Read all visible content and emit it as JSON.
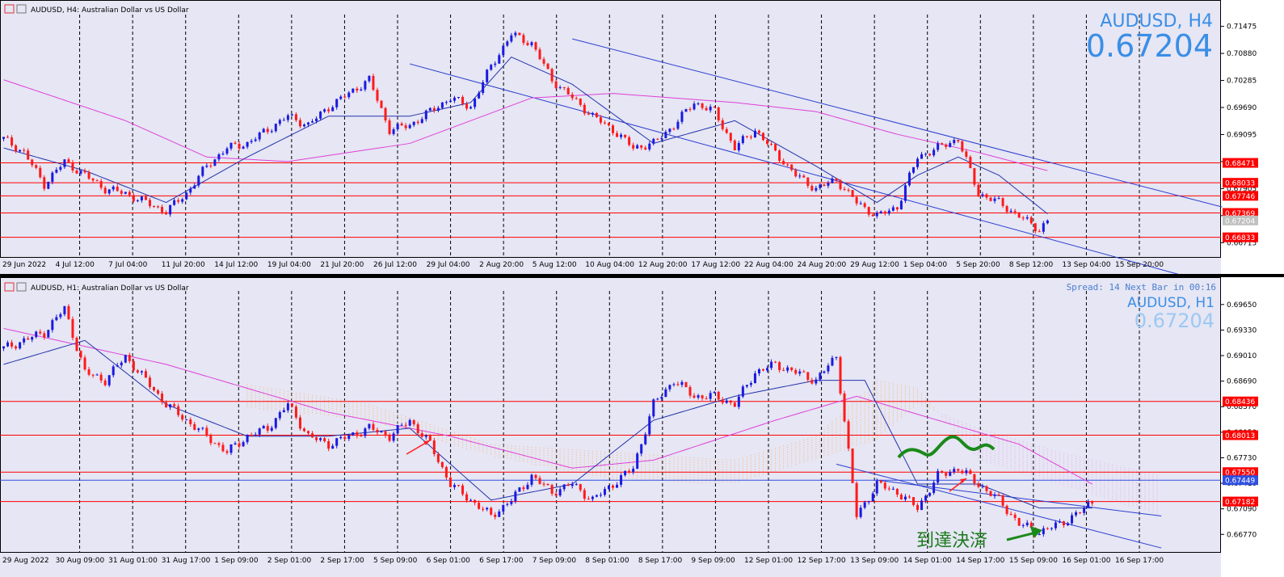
{
  "charts": [
    {
      "id": "h4",
      "header": "AUDUSD, H4:  Australian Dollar vs US Dollar",
      "watermark_symbol": "AUDUSD, H4",
      "watermark_price": "0.67204",
      "watermark_color": "#3a8ee6",
      "ylim": [
        0.664,
        0.717
      ],
      "yticks": [
        "0.71475",
        "0.70880",
        "0.70285",
        "0.69690",
        "0.69095",
        "0.68500",
        "0.67905",
        "0.67310",
        "0.66715"
      ],
      "price_tags": [
        {
          "label": "0.68471",
          "value": 0.68471,
          "color": "#ff0000"
        },
        {
          "label": "0.68033",
          "value": 0.68033,
          "color": "#ff0000"
        },
        {
          "label": "0.67746",
          "value": 0.67746,
          "color": "#ff0000"
        },
        {
          "label": "0.67369",
          "value": 0.67369,
          "color": "#ff0000"
        },
        {
          "label": "0.67204",
          "value": 0.67204,
          "color": "#c0c0c0"
        },
        {
          "label": "0.66833",
          "value": 0.66833,
          "color": "#ff0000"
        }
      ],
      "xlabels": [
        "29 Jun 2022",
        "4 Jul 12:00",
        "7 Jul 04:00",
        "11 Jul 20:00",
        "14 Jul 12:00",
        "19 Jul 04:00",
        "21 Jul 20:00",
        "26 Jul 12:00",
        "29 Jul 04:00",
        "2 Aug 20:00",
        "5 Aug 12:00",
        "10 Aug 04:00",
        "12 Aug 20:00",
        "17 Aug 12:00",
        "22 Aug 04:00",
        "24 Aug 20:00",
        "29 Aug 12:00",
        "1 Sep 04:00",
        "5 Sep 20:00",
        "8 Sep 12:00",
        "13 Sep 04:00",
        "15 Sep 20:00"
      ],
      "close_path": [
        [
          0,
          0.69
        ],
        [
          5,
          0.687
        ],
        [
          10,
          0.68
        ],
        [
          15,
          0.685
        ],
        [
          20,
          0.682
        ],
        [
          25,
          0.679
        ],
        [
          30,
          0.678
        ],
        [
          35,
          0.676
        ],
        [
          40,
          0.674
        ],
        [
          45,
          0.678
        ],
        [
          50,
          0.684
        ],
        [
          55,
          0.688
        ],
        [
          60,
          0.689
        ],
        [
          65,
          0.692
        ],
        [
          70,
          0.695
        ],
        [
          75,
          0.693
        ],
        [
          80,
          0.697
        ],
        [
          85,
          0.7
        ],
        [
          90,
          0.703
        ],
        [
          95,
          0.692
        ],
        [
          100,
          0.693
        ],
        [
          105,
          0.696
        ],
        [
          110,
          0.699
        ],
        [
          115,
          0.697
        ],
        [
          120,
          0.706
        ],
        [
          125,
          0.713
        ],
        [
          130,
          0.711
        ],
        [
          135,
          0.703
        ],
        [
          140,
          0.699
        ],
        [
          145,
          0.695
        ],
        [
          150,
          0.692
        ],
        [
          155,
          0.688
        ],
        [
          160,
          0.689
        ],
        [
          165,
          0.693
        ],
        [
          170,
          0.698
        ],
        [
          175,
          0.696
        ],
        [
          180,
          0.688
        ],
        [
          185,
          0.692
        ],
        [
          190,
          0.687
        ],
        [
          195,
          0.682
        ],
        [
          200,
          0.679
        ],
        [
          205,
          0.681
        ],
        [
          210,
          0.676
        ],
        [
          215,
          0.673
        ],
        [
          220,
          0.675
        ],
        [
          225,
          0.686
        ],
        [
          230,
          0.688
        ],
        [
          235,
          0.69
        ],
        [
          240,
          0.678
        ],
        [
          245,
          0.676
        ],
        [
          250,
          0.673
        ],
        [
          255,
          0.67
        ],
        [
          257,
          0.672
        ]
      ],
      "ma_slow": [
        [
          0,
          0.703
        ],
        [
          30,
          0.694
        ],
        [
          50,
          0.686
        ],
        [
          70,
          0.685
        ],
        [
          100,
          0.689
        ],
        [
          130,
          0.699
        ],
        [
          150,
          0.7
        ],
        [
          180,
          0.698
        ],
        [
          200,
          0.696
        ],
        [
          220,
          0.691
        ],
        [
          240,
          0.687
        ],
        [
          257,
          0.683
        ]
      ],
      "ma_fast": [
        [
          0,
          0.688
        ],
        [
          20,
          0.683
        ],
        [
          40,
          0.676
        ],
        [
          60,
          0.686
        ],
        [
          80,
          0.695
        ],
        [
          100,
          0.695
        ],
        [
          115,
          0.698
        ],
        [
          125,
          0.708
        ],
        [
          140,
          0.702
        ],
        [
          160,
          0.689
        ],
        [
          180,
          0.694
        ],
        [
          200,
          0.684
        ],
        [
          215,
          0.676
        ],
        [
          225,
          0.682
        ],
        [
          235,
          0.686
        ],
        [
          245,
          0.682
        ],
        [
          257,
          0.6735
        ]
      ],
      "channel": [
        [
          [
            100,
            0.7065
          ],
          [
            290,
            0.66
          ]
        ],
        [
          [
            140,
            0.712
          ],
          [
            300,
            0.675
          ]
        ]
      ]
    },
    {
      "id": "h1",
      "header": "AUDUSD, H1:  Australian Dollar vs US Dollar",
      "info_line": "Spread: 14  Next Bar in 00:16",
      "watermark_symbol": "AUDUSD, H1",
      "watermark_price": "0.67204",
      "watermark_color": "#9cc9f2",
      "ylim": [
        0.6655,
        0.698
      ],
      "yticks": [
        "0.69650",
        "0.69330",
        "0.69010",
        "0.68690",
        "0.68370",
        "0.68050",
        "0.67730",
        "0.67410",
        "0.67090",
        "0.66770"
      ],
      "price_tags": [
        {
          "label": "0.68436",
          "value": 0.68436,
          "color": "#ff0000"
        },
        {
          "label": "0.68013",
          "value": 0.68013,
          "color": "#ff0000"
        },
        {
          "label": "0.67550",
          "value": 0.6755,
          "color": "#ff0000"
        },
        {
          "label": "0.67449",
          "value": 0.67449,
          "color": "#3050e0"
        },
        {
          "label": "0.67182",
          "value": 0.67182,
          "color": "#ff0000"
        }
      ],
      "xlabels": [
        "29 Aug 2022",
        "30 Aug 09:00",
        "31 Aug 01:00",
        "31 Aug 17:00",
        "1 Sep 09:00",
        "2 Sep 01:00",
        "2 Sep 17:00",
        "5 Sep 09:00",
        "6 Sep 01:00",
        "6 Sep 17:00",
        "7 Sep 09:00",
        "8 Sep 01:00",
        "8 Sep 17:00",
        "9 Sep 09:00",
        "12 Sep 01:00",
        "12 Sep 17:00",
        "13 Sep 09:00",
        "14 Sep 01:00",
        "14 Sep 17:00",
        "15 Sep 09:00",
        "16 Sep 01:00",
        "16 Sep 17:00"
      ],
      "close_path": [
        [
          0,
          0.691
        ],
        [
          5,
          0.692
        ],
        [
          10,
          0.693
        ],
        [
          15,
          0.696
        ],
        [
          20,
          0.688
        ],
        [
          25,
          0.687
        ],
        [
          30,
          0.69
        ],
        [
          35,
          0.687
        ],
        [
          40,
          0.684
        ],
        [
          45,
          0.682
        ],
        [
          50,
          0.68
        ],
        [
          55,
          0.678
        ],
        [
          60,
          0.68
        ],
        [
          65,
          0.681
        ],
        [
          70,
          0.684
        ],
        [
          75,
          0.68
        ],
        [
          80,
          0.679
        ],
        [
          85,
          0.68
        ],
        [
          90,
          0.681
        ],
        [
          95,
          0.68
        ],
        [
          100,
          0.682
        ],
        [
          105,
          0.679
        ],
        [
          110,
          0.674
        ],
        [
          115,
          0.672
        ],
        [
          120,
          0.67
        ],
        [
          125,
          0.672
        ],
        [
          130,
          0.675
        ],
        [
          135,
          0.673
        ],
        [
          140,
          0.674
        ],
        [
          145,
          0.672
        ],
        [
          150,
          0.674
        ],
        [
          155,
          0.676
        ],
        [
          160,
          0.684
        ],
        [
          165,
          0.687
        ],
        [
          170,
          0.685
        ],
        [
          175,
          0.685
        ],
        [
          180,
          0.684
        ],
        [
          185,
          0.688
        ],
        [
          190,
          0.689
        ],
        [
          195,
          0.688
        ],
        [
          200,
          0.687
        ],
        [
          205,
          0.69
        ],
        [
          210,
          0.67
        ],
        [
          215,
          0.674
        ],
        [
          220,
          0.673
        ],
        [
          225,
          0.671
        ],
        [
          230,
          0.675
        ],
        [
          235,
          0.676
        ],
        [
          240,
          0.674
        ],
        [
          245,
          0.672
        ],
        [
          250,
          0.669
        ],
        [
          255,
          0.668
        ],
        [
          260,
          0.669
        ],
        [
          265,
          0.6705
        ],
        [
          268,
          0.6718
        ]
      ],
      "ma_slow": [
        [
          0,
          0.6935
        ],
        [
          40,
          0.689
        ],
        [
          80,
          0.683
        ],
        [
          110,
          0.68
        ],
        [
          140,
          0.676
        ],
        [
          160,
          0.677
        ],
        [
          190,
          0.682
        ],
        [
          210,
          0.685
        ],
        [
          230,
          0.682
        ],
        [
          250,
          0.679
        ],
        [
          268,
          0.674
        ]
      ],
      "ma_fast": [
        [
          0,
          0.689
        ],
        [
          20,
          0.692
        ],
        [
          40,
          0.684
        ],
        [
          60,
          0.68
        ],
        [
          80,
          0.68
        ],
        [
          100,
          0.681
        ],
        [
          120,
          0.672
        ],
        [
          140,
          0.674
        ],
        [
          160,
          0.682
        ],
        [
          180,
          0.685
        ],
        [
          200,
          0.687
        ],
        [
          212,
          0.687
        ],
        [
          225,
          0.674
        ],
        [
          240,
          0.674
        ],
        [
          255,
          0.671
        ],
        [
          268,
          0.671
        ]
      ],
      "cloud_a": [
        [
          60,
          0.6865
        ],
        [
          90,
          0.684
        ],
        [
          120,
          0.679
        ],
        [
          150,
          0.678
        ],
        [
          180,
          0.677
        ],
        [
          200,
          0.68
        ],
        [
          215,
          0.687
        ],
        [
          225,
          0.686
        ],
        [
          240,
          0.677
        ],
        [
          260,
          0.674
        ],
        [
          285,
          0.67
        ]
      ],
      "cloud_b": [
        [
          60,
          0.6835
        ],
        [
          90,
          0.682
        ],
        [
          120,
          0.6775
        ],
        [
          150,
          0.6745
        ],
        [
          180,
          0.674
        ],
        [
          200,
          0.677
        ],
        [
          215,
          0.6795
        ],
        [
          225,
          0.684
        ],
        [
          240,
          0.681
        ],
        [
          260,
          0.678
        ],
        [
          285,
          0.675
        ]
      ],
      "channel": [
        [
          [
            205,
            0.6765
          ],
          [
            285,
            0.666
          ]
        ],
        [
          [
            215,
            0.6745
          ],
          [
            285,
            0.67
          ]
        ]
      ],
      "annotation_text": "到達決済"
    }
  ]
}
